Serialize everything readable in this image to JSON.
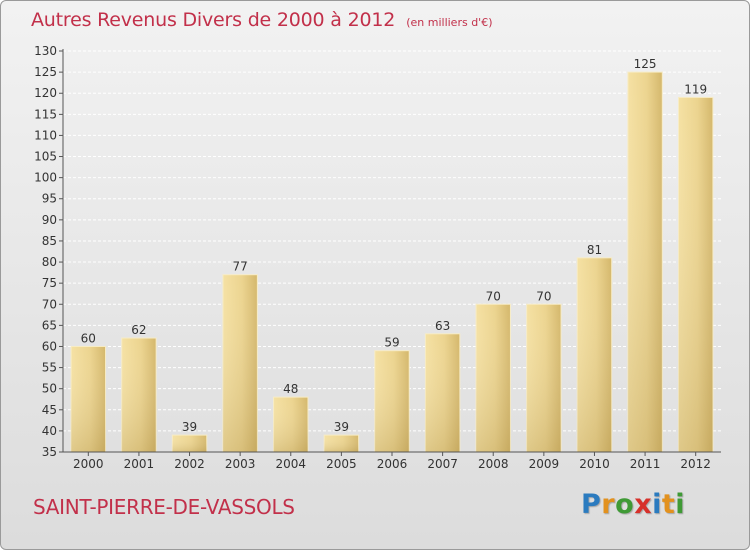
{
  "header": {
    "title": "Autres Revenus Divers de 2000 à 2012",
    "subtitle": "(en milliers d'€)"
  },
  "footer": {
    "city": "SAINT-PIERRE-DE-VASSOLS",
    "logo": {
      "letters": [
        "P",
        "r",
        "o",
        "x",
        "i",
        "t",
        "i"
      ],
      "colors": [
        "#2b7bbf",
        "#e2911e",
        "#3f9a35",
        "#d7312b",
        "#2b7bbf",
        "#e2911e",
        "#3f9a35"
      ]
    }
  },
  "chart_data": {
    "type": "bar",
    "title": "Autres Revenus Divers de 2000 à 2012",
    "subtitle": "(en milliers d'€)",
    "categories": [
      "2000",
      "2001",
      "2002",
      "2003",
      "2004",
      "2005",
      "2006",
      "2007",
      "2008",
      "2009",
      "2010",
      "2011",
      "2012"
    ],
    "values": [
      60,
      62,
      39,
      77,
      48,
      39,
      59,
      63,
      70,
      70,
      81,
      125,
      119
    ],
    "ylim": [
      35,
      130
    ],
    "yticks": [
      35,
      40,
      45,
      50,
      55,
      60,
      65,
      70,
      75,
      80,
      85,
      90,
      95,
      100,
      105,
      110,
      115,
      120,
      125,
      130
    ],
    "grid": true,
    "bar_color": "#e8cf86"
  }
}
